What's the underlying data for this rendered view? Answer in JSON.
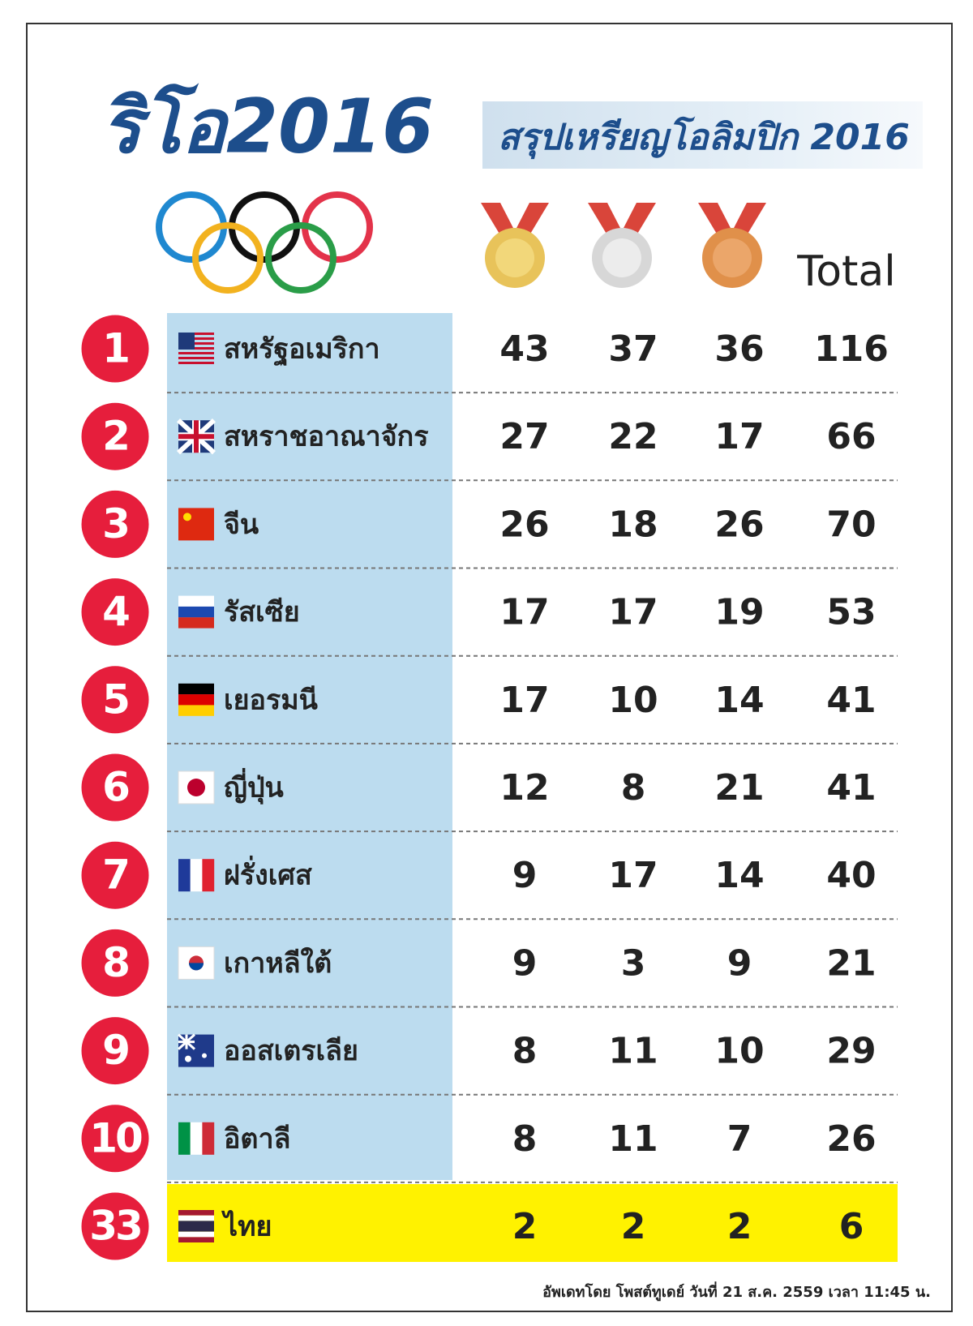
{
  "header": {
    "logo_text": "ริโอ2016",
    "subtitle": "สรุปเหรียญโอลิมปิก 2016",
    "total_label": "Total"
  },
  "table": {
    "rows": [
      {
        "rank": "1",
        "country": "สหรัฐอเมริกา",
        "gold": "43",
        "silver": "37",
        "bronze": "36",
        "total": "116"
      },
      {
        "rank": "2",
        "country": "สหราชอาณาจักร",
        "gold": "27",
        "silver": "22",
        "bronze": "17",
        "total": "66"
      },
      {
        "rank": "3",
        "country": "จีน",
        "gold": "26",
        "silver": "18",
        "bronze": "26",
        "total": "70"
      },
      {
        "rank": "4",
        "country": "รัสเซีย",
        "gold": "17",
        "silver": "17",
        "bronze": "19",
        "total": "53"
      },
      {
        "rank": "5",
        "country": "เยอรมนี",
        "gold": "17",
        "silver": "10",
        "bronze": "14",
        "total": "41"
      },
      {
        "rank": "6",
        "country": "ญี่ปุ่น",
        "gold": "12",
        "silver": "8",
        "bronze": "21",
        "total": "41"
      },
      {
        "rank": "7",
        "country": "ฝรั่งเศส",
        "gold": "9",
        "silver": "17",
        "bronze": "14",
        "total": "40"
      },
      {
        "rank": "8",
        "country": "เกาหลีใต้",
        "gold": "9",
        "silver": "3",
        "bronze": "9",
        "total": "21"
      },
      {
        "rank": "9",
        "country": "ออสเตรเลีย",
        "gold": "8",
        "silver": "11",
        "bronze": "10",
        "total": "29"
      },
      {
        "rank": "10",
        "country": "อิตาลี",
        "gold": "8",
        "silver": "11",
        "bronze": "7",
        "total": "26"
      },
      {
        "rank": "33",
        "country": "ไทย",
        "gold": "2",
        "silver": "2",
        "bronze": "2",
        "total": "6"
      }
    ]
  },
  "footer": {
    "note": "อัพเดทโดย โพสต์ทูเดย์ วันที่ 21 ส.ค. 2559 เวลา 11:45 น."
  }
}
